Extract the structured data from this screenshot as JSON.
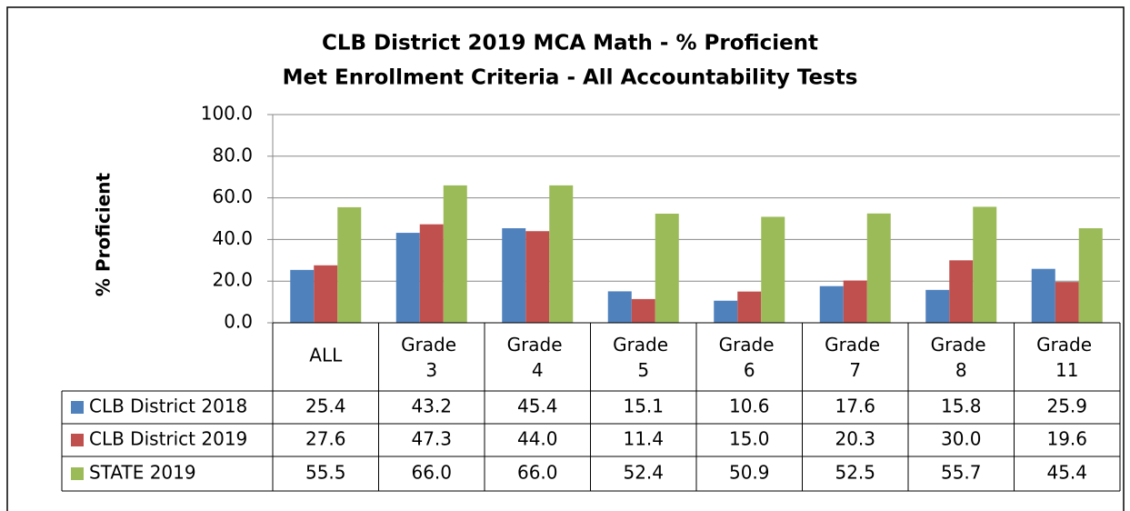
{
  "chart_data": {
    "type": "bar",
    "title": "CLB District 2019 MCA Math - % Proficient",
    "subtitle": "Met Enrollment Criteria - All Accountability Tests",
    "y_label": "% Proficient",
    "categories": [
      "ALL",
      "Grade 3",
      "Grade 4",
      "Grade 5",
      "Grade 6",
      "Grade 7",
      "Grade 8",
      "Grade 11"
    ],
    "series": [
      {
        "name": "CLB District 2018",
        "color": "#4f81bd",
        "values": [
          25.4,
          43.2,
          45.4,
          15.1,
          10.6,
          17.6,
          15.8,
          25.9
        ],
        "value_labels": [
          "25.4",
          "43.2",
          "45.4",
          "15.1",
          "10.6",
          "17.6",
          "15.8",
          "25.9"
        ]
      },
      {
        "name": "CLB District 2019",
        "color": "#c0504d",
        "values": [
          27.6,
          47.3,
          44,
          11.4,
          15,
          20.3,
          30,
          19.6
        ],
        "value_labels": [
          "27.6",
          "47.3",
          "44.0",
          "11.4",
          "15.0",
          "20.3",
          "30.0",
          "19.6"
        ]
      },
      {
        "name": "STATE 2019",
        "color": "#9bbb59",
        "values": [
          55.5,
          66,
          66,
          52.4,
          50.9,
          52.5,
          55.7,
          45.4
        ],
        "value_labels": [
          "55.5",
          "66.0",
          "66.0",
          "52.4",
          "50.9",
          "52.5",
          "55.7",
          "45.4"
        ]
      }
    ],
    "ylim": [
      0,
      100
    ],
    "yticks": [
      {
        "value": 0,
        "label": "0.0"
      },
      {
        "value": 20,
        "label": "20.0"
      },
      {
        "value": 40,
        "label": "40.0"
      },
      {
        "value": 60,
        "label": "60.0"
      },
      {
        "value": 80,
        "label": "80.0"
      },
      {
        "value": 100,
        "label": "100.0"
      }
    ],
    "grid": true
  }
}
